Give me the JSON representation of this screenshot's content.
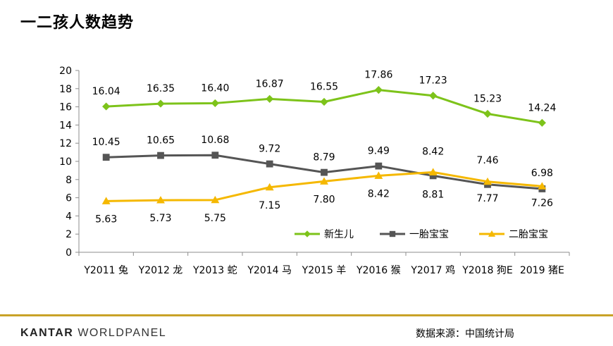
{
  "page": {
    "title": "一二孩人数趋势",
    "brand_main": "KANTAR",
    "brand_sub": "WORLDPANEL",
    "source": "数据来源：中国统计局"
  },
  "colors": {
    "series_1": "#7dc31a",
    "series_2": "#555555",
    "series_3": "#f5b800",
    "footer_rule": "#c9a227"
  },
  "chart_data": {
    "type": "line",
    "title": "",
    "xlabel": "",
    "ylabel": "",
    "ylim": [
      0,
      20
    ],
    "yticks": [
      0,
      2,
      4,
      6,
      8,
      10,
      12,
      14,
      16,
      18,
      20
    ],
    "grid": false,
    "legend": "bottom-right",
    "categories": [
      "Y2011 兔",
      "Y2012 龙",
      "Y2013 蛇",
      "Y2014 马",
      "Y2015 羊",
      "Y2016 猴",
      "Y2017 鸡",
      "Y2018 狗E",
      "2019 猪E"
    ],
    "series": [
      {
        "name": "新生儿",
        "marker": "diamond",
        "color": "#7dc31a",
        "values": [
          16.04,
          16.35,
          16.4,
          16.87,
          16.55,
          17.86,
          17.23,
          15.23,
          14.24
        ],
        "labels": [
          "16.04",
          "16.35",
          "16.40",
          "16.87",
          "16.55",
          "17.86",
          "17.23",
          "15.23",
          "14.24"
        ]
      },
      {
        "name": "一胎宝宝",
        "marker": "square",
        "color": "#555555",
        "values": [
          10.45,
          10.65,
          10.68,
          9.72,
          8.79,
          9.49,
          8.42,
          7.46,
          6.98
        ],
        "labels": [
          "10.45",
          "10.65",
          "10.68",
          "9.72",
          "8.79",
          "9.49",
          "8.42",
          "7.46",
          "6.98"
        ]
      },
      {
        "name": "二胎宝宝",
        "marker": "triangle",
        "color": "#f5b800",
        "values": [
          5.63,
          5.73,
          5.75,
          7.15,
          7.8,
          8.42,
          8.81,
          7.77,
          7.26
        ],
        "labels": [
          "5.63",
          "5.73",
          "5.75",
          "7.15",
          "7.80",
          "8.42",
          "8.81",
          "7.77",
          "7.26"
        ]
      }
    ]
  }
}
